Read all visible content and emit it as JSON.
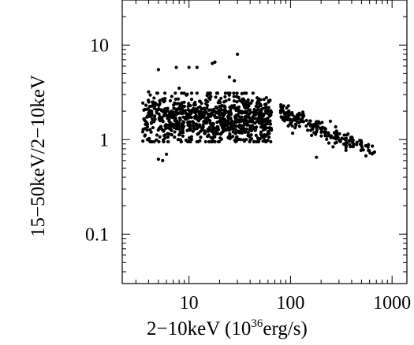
{
  "chart_data": {
    "type": "scatter",
    "xlabel_main": "2−10keV (10",
    "xlabel_sup": "36",
    "xlabel_unit": "erg/s)",
    "ylabel": "15−50keV/2−10keV",
    "x_scale": "log",
    "y_scale": "log",
    "xlim": [
      2.2,
      1400
    ],
    "ylim": [
      0.03,
      30
    ],
    "x_ticks": [
      {
        "value": 10,
        "label": "10"
      },
      {
        "value": 100,
        "label": "100"
      },
      {
        "value": 1000,
        "label": "1000"
      }
    ],
    "y_ticks": [
      {
        "value": 0.1,
        "label": "0.1"
      },
      {
        "value": 1,
        "label": "1"
      },
      {
        "value": 10,
        "label": "10"
      }
    ],
    "grid": false,
    "legend": "none",
    "marker_color": "#000000",
    "clusters": [
      {
        "x_range": [
          3.5,
          65
        ],
        "y_center": 1.65,
        "y_spread": 0.14,
        "count": 900
      },
      {
        "x_range": [
          80,
          700
        ],
        "trend_y_start": 1.9,
        "trend_y_end": 0.75,
        "y_spread": 0.05,
        "count": 200
      }
    ],
    "outliers": [
      {
        "x": 5,
        "y": 5.5
      },
      {
        "x": 7.5,
        "y": 5.8
      },
      {
        "x": 10,
        "y": 5.8
      },
      {
        "x": 12,
        "y": 5.8
      },
      {
        "x": 17,
        "y": 6.4
      },
      {
        "x": 18,
        "y": 6.6
      },
      {
        "x": 25,
        "y": 4.6
      },
      {
        "x": 28,
        "y": 4.2
      },
      {
        "x": 30,
        "y": 8.0
      },
      {
        "x": 5,
        "y": 0.62
      },
      {
        "x": 5.5,
        "y": 0.6
      },
      {
        "x": 180,
        "y": 0.65
      },
      {
        "x": 4,
        "y": 3.2
      },
      {
        "x": 8,
        "y": 3.5
      },
      {
        "x": 6,
        "y": 0.7
      }
    ]
  }
}
